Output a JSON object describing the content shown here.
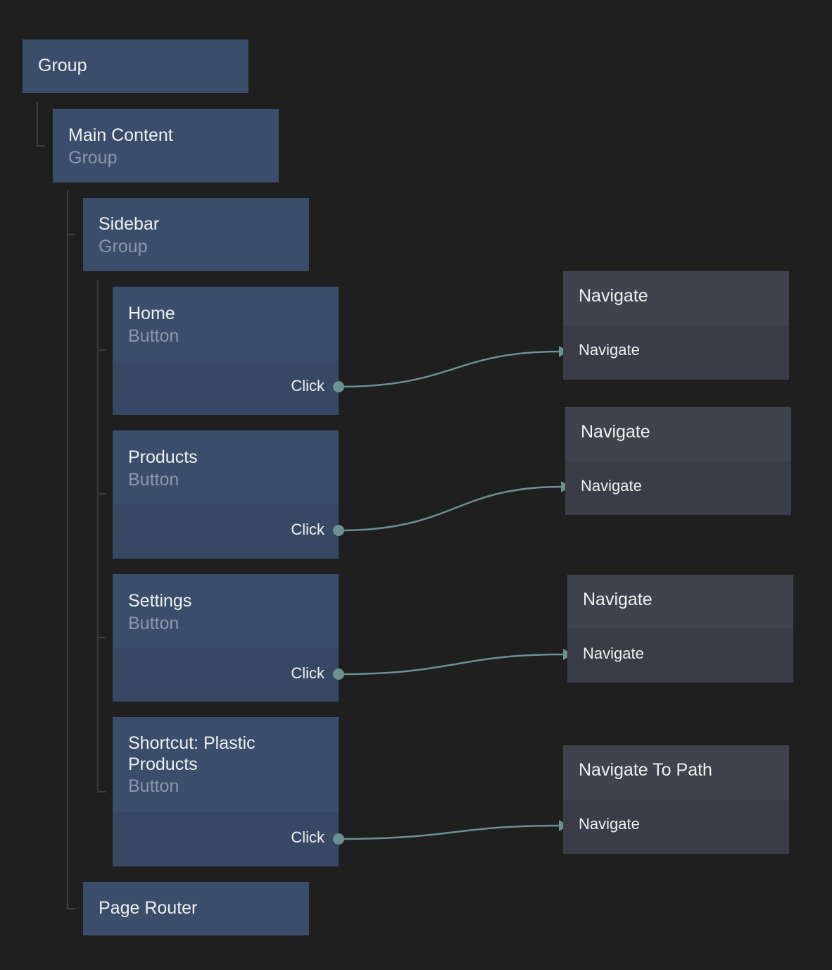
{
  "colors": {
    "background": "#1f1f1f",
    "visual_node": "#3a4e6b",
    "logic_node": "#3a3c47",
    "wire": "#6a9290"
  },
  "tree_nodes": [
    {
      "title": "Group",
      "type": ""
    },
    {
      "title": "Main Content",
      "type": "Group"
    },
    {
      "title": "Sidebar",
      "type": "Group"
    },
    {
      "title": "Home",
      "type": "Button",
      "output": "Click"
    },
    {
      "title": "Products",
      "type": "Button",
      "output": "Click"
    },
    {
      "title": "Settings",
      "type": "Button",
      "output": "Click"
    },
    {
      "title": "Shortcut: Plastic\nProducts",
      "type": "Button",
      "output": "Click"
    },
    {
      "title": "Page Router",
      "type": ""
    }
  ],
  "logic_nodes": [
    {
      "title": "Navigate",
      "input": "Navigate"
    },
    {
      "title": "Navigate",
      "input": "Navigate"
    },
    {
      "title": "Navigate",
      "input": "Navigate"
    },
    {
      "title": "Navigate To Path",
      "input": "Navigate"
    }
  ],
  "connections": [
    {
      "from": "Home.Click",
      "to": "Navigate.Navigate"
    },
    {
      "from": "Products.Click",
      "to": "Navigate.Navigate"
    },
    {
      "from": "Settings.Click",
      "to": "Navigate.Navigate"
    },
    {
      "from": "Shortcut: Plastic Products.Click",
      "to": "Navigate To Path.Navigate"
    }
  ]
}
